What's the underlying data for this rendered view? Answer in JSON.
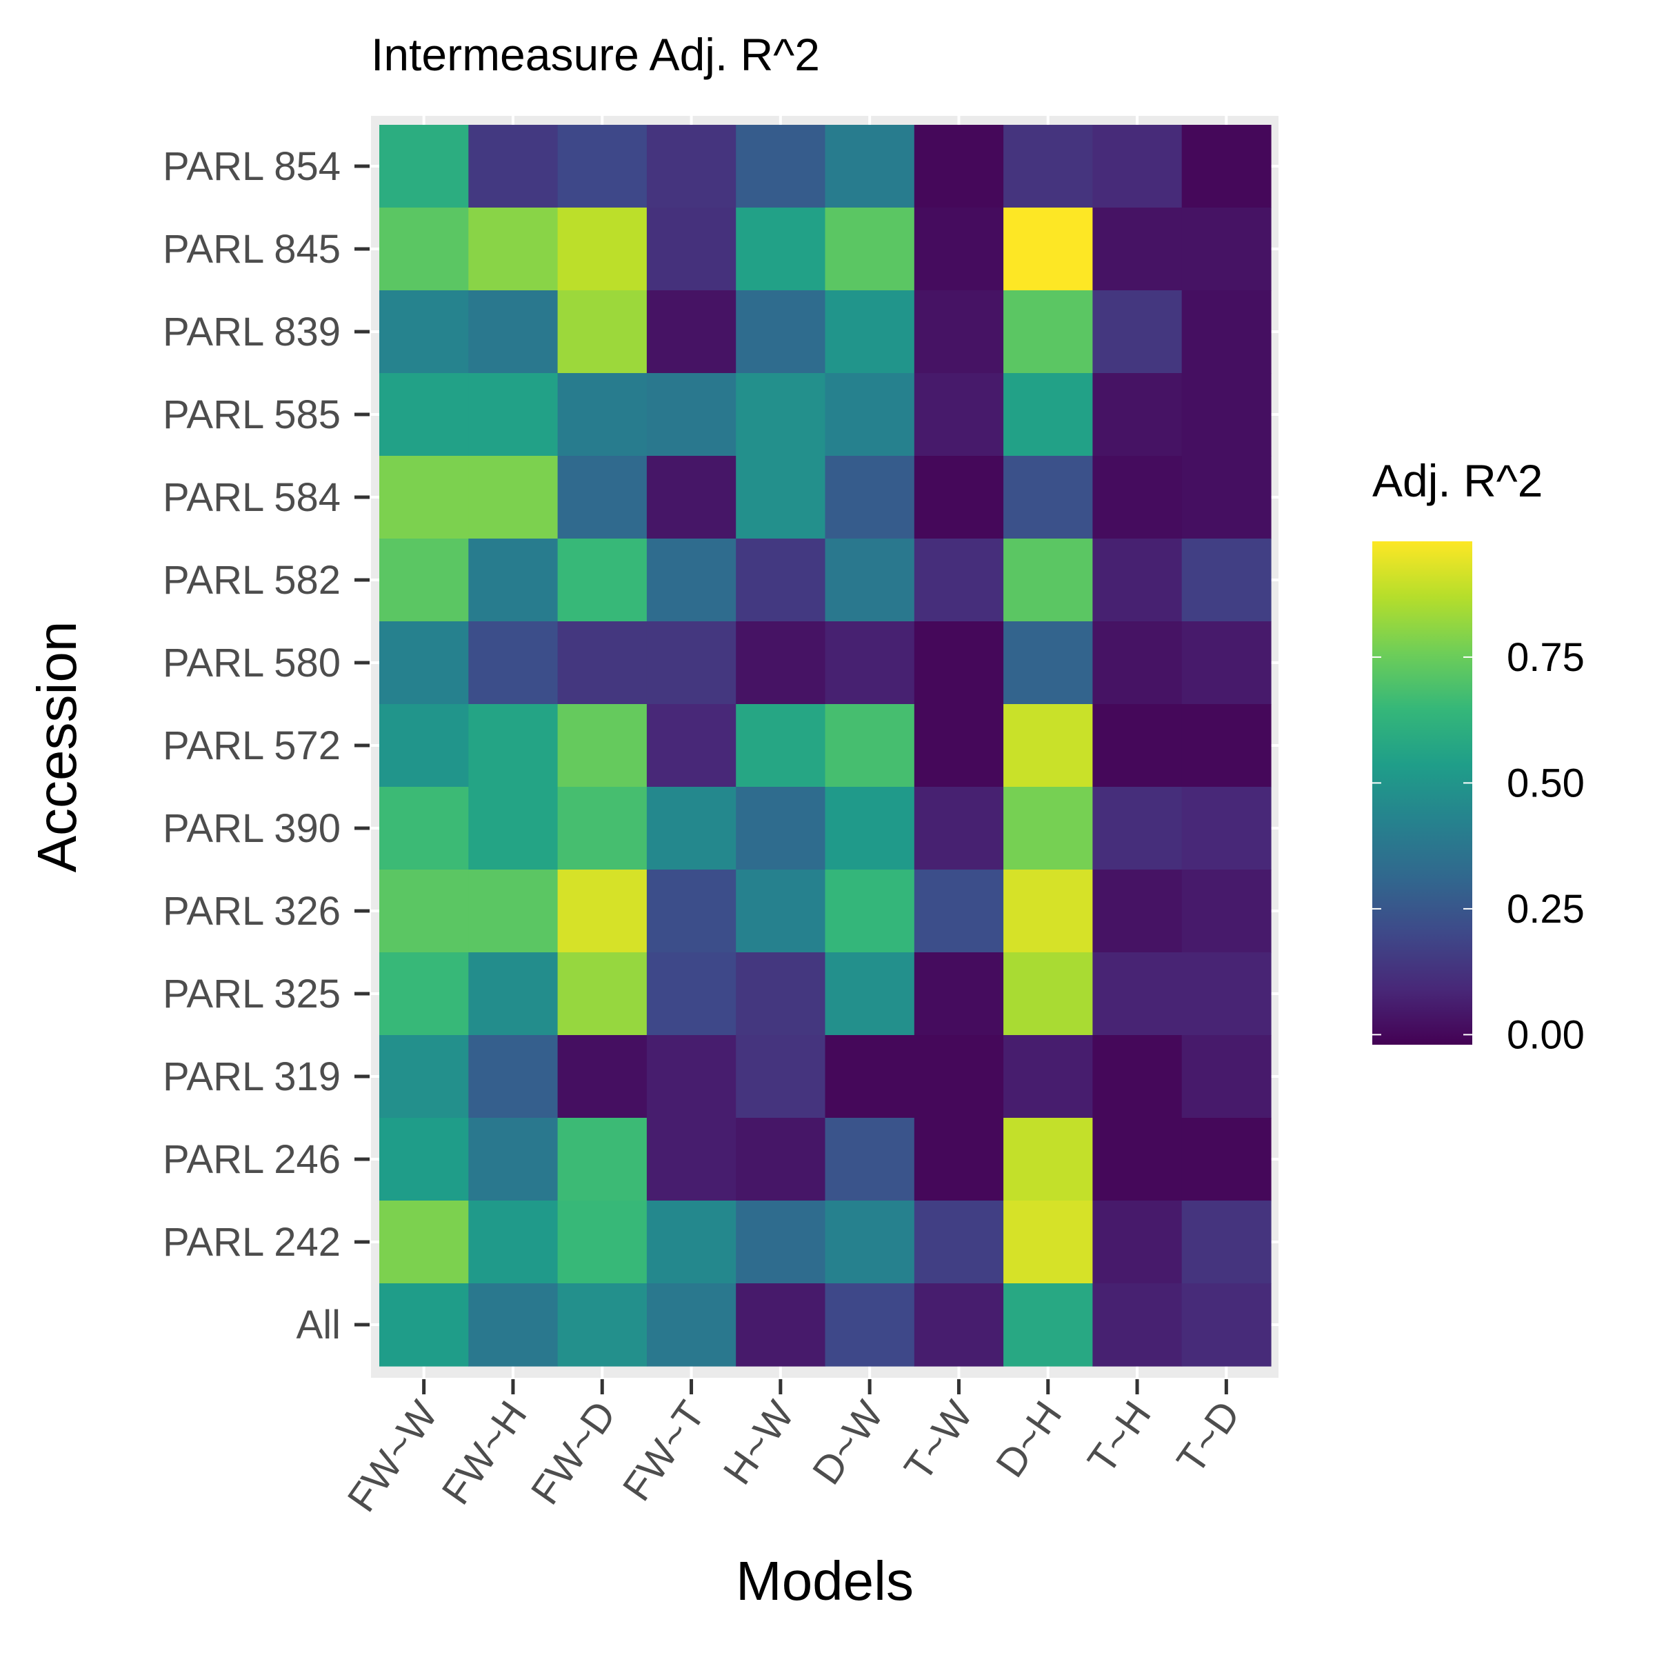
{
  "chart_data": {
    "type": "heatmap",
    "title": "Intermeasure Adj. R^2",
    "xlabel": "Models",
    "ylabel": "Accession",
    "x_categories": [
      "FW~W",
      "FW~H",
      "FW~D",
      "FW~T",
      "H~W",
      "D~W",
      "T~W",
      "D~H",
      "T~H",
      "T~D"
    ],
    "y_categories": [
      "PARL 854",
      "PARL 845",
      "PARL 839",
      "PARL 585",
      "PARL 584",
      "PARL 582",
      "PARL 580",
      "PARL 572",
      "PARL 390",
      "PARL 326",
      "PARL 325",
      "PARL 319",
      "PARL 246",
      "PARL 242",
      "All"
    ],
    "values": [
      [
        0.6,
        0.15,
        0.2,
        0.13,
        0.27,
        0.4,
        0.0,
        0.13,
        0.1,
        0.0
      ],
      [
        0.72,
        0.8,
        0.88,
        0.12,
        0.55,
        0.72,
        0.01,
        0.98,
        0.03,
        0.03
      ],
      [
        0.43,
        0.38,
        0.83,
        0.03,
        0.33,
        0.5,
        0.03,
        0.72,
        0.14,
        0.02
      ],
      [
        0.55,
        0.55,
        0.4,
        0.38,
        0.48,
        0.42,
        0.05,
        0.55,
        0.03,
        0.02
      ],
      [
        0.78,
        0.78,
        0.32,
        0.04,
        0.48,
        0.27,
        0.0,
        0.23,
        0.01,
        0.02
      ],
      [
        0.72,
        0.4,
        0.65,
        0.33,
        0.15,
        0.38,
        0.11,
        0.72,
        0.07,
        0.17
      ],
      [
        0.42,
        0.22,
        0.14,
        0.14,
        0.03,
        0.07,
        0.0,
        0.3,
        0.03,
        0.05
      ],
      [
        0.5,
        0.56,
        0.74,
        0.09,
        0.57,
        0.68,
        0.0,
        0.9,
        0.0,
        0.0
      ],
      [
        0.66,
        0.56,
        0.68,
        0.45,
        0.33,
        0.52,
        0.07,
        0.77,
        0.11,
        0.09
      ],
      [
        0.72,
        0.72,
        0.92,
        0.22,
        0.42,
        0.64,
        0.22,
        0.92,
        0.03,
        0.05
      ],
      [
        0.65,
        0.47,
        0.82,
        0.2,
        0.14,
        0.48,
        0.01,
        0.85,
        0.08,
        0.08
      ],
      [
        0.48,
        0.28,
        0.02,
        0.06,
        0.13,
        0.0,
        0.0,
        0.06,
        0.0,
        0.05
      ],
      [
        0.53,
        0.38,
        0.66,
        0.06,
        0.04,
        0.24,
        0.0,
        0.89,
        0.0,
        0.0
      ],
      [
        0.78,
        0.52,
        0.65,
        0.45,
        0.33,
        0.42,
        0.17,
        0.92,
        0.05,
        0.13
      ],
      [
        0.53,
        0.38,
        0.48,
        0.38,
        0.05,
        0.2,
        0.06,
        0.58,
        0.07,
        0.1
      ]
    ],
    "color_scale": {
      "name": "viridis",
      "title": "Adj. R^2",
      "min": -0.02,
      "max": 0.98,
      "ticks": [
        "0.00",
        "0.25",
        "0.50",
        "0.75"
      ],
      "tick_values": [
        0,
        0.25,
        0.5,
        0.75
      ],
      "colors": [
        "#440154",
        "#482878",
        "#3e4989",
        "#31688e",
        "#26828e",
        "#1f9e89",
        "#35b779",
        "#6ece58",
        "#b5de2b",
        "#fde725"
      ]
    },
    "panel_background": "#ebebeb",
    "legend_position": "right"
  }
}
